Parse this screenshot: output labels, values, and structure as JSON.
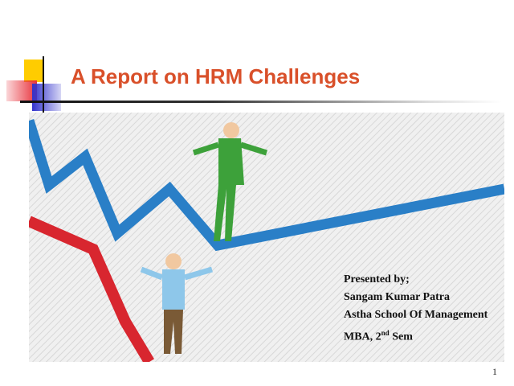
{
  "slide": {
    "title": "A Report on HRM Challenges",
    "presenter_label": "Presented by;",
    "presenter_name": "Sangam Kumar Patra",
    "institution": "Astha School Of Management",
    "course_prefix": "MBA, 2",
    "course_sup": "nd",
    "course_suffix": " Sem",
    "page_number": "1"
  },
  "colors": {
    "title": "#d9502a",
    "accent_yellow": "#ffcc00",
    "accent_red": "#e8323c",
    "accent_blue": "#3333cc",
    "up_line": "#2a7fc7",
    "down_line": "#d8262f"
  }
}
